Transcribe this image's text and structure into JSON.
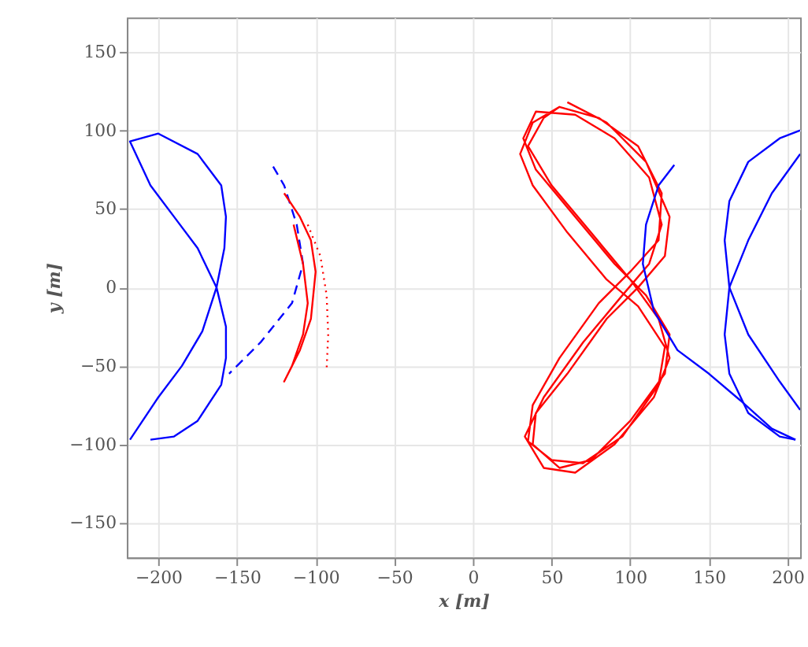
{
  "chart_data": {
    "type": "line",
    "xlabel": "x [m]",
    "ylabel": "y [m]",
    "xlim": [
      -220,
      208
    ],
    "ylim": [
      -172,
      172
    ],
    "xticks": [
      -200,
      -150,
      -100,
      -50,
      0,
      50,
      100,
      150,
      200
    ],
    "yticks": [
      -150,
      -100,
      -50,
      0,
      50,
      100,
      150
    ],
    "grid": true,
    "marker": "none",
    "series": [
      {
        "color": "#0000ff",
        "line_style": "solid",
        "x": [
          -218,
          -200,
          -185,
          -172,
          -163,
          -158,
          -157,
          -160,
          -175,
          -200,
          -218,
          -205,
          -190,
          -175,
          -163,
          -157,
          -157,
          -160,
          -175,
          -190,
          -205
        ],
        "values": [
          -97,
          -70,
          -50,
          -28,
          0,
          25,
          45,
          65,
          85,
          98,
          93,
          65,
          45,
          25,
          0,
          -25,
          -45,
          -62,
          -85,
          -95,
          -97
        ]
      },
      {
        "color": "#0000ff",
        "line_style": "dashed",
        "x": [
          -127,
          -120,
          -112,
          -108,
          -115,
          -135,
          -155
        ],
        "values": [
          77,
          65,
          40,
          15,
          -10,
          -35,
          -55
        ]
      },
      {
        "color": "#ff0000",
        "line_style": "solid",
        "x": [
          -120,
          -110,
          -103,
          -100,
          -103,
          -110,
          -120,
          -115,
          -108,
          -105,
          -108,
          -114
        ],
        "values": [
          60,
          45,
          30,
          10,
          -20,
          -40,
          -60,
          -50,
          -30,
          -10,
          15,
          40
        ]
      },
      {
        "color": "#ff0000",
        "line_style": "dotted",
        "x": [
          -105,
          -97,
          -93,
          -92,
          -93
        ],
        "values": [
          40,
          20,
          -5,
          -30,
          -52
        ]
      },
      {
        "color": "#ff0000",
        "line_style": "solid",
        "x": [
          60,
          85,
          110,
          125,
          122,
          105,
          85,
          60,
          40,
          38,
          55,
          75,
          100,
          122,
          125,
          110,
          90,
          65,
          40,
          32,
          40,
          65,
          90,
          112,
          120,
          112,
          95,
          70,
          45,
          33,
          45,
          65,
          90,
          115,
          125,
          118,
          100,
          75,
          50,
          35,
          45,
          55,
          80,
          105,
          120,
          118,
          100,
          80,
          55,
          38,
          35,
          50,
          70,
          95,
          118,
          122,
          105,
          85,
          60,
          38,
          30,
          38,
          55
        ],
        "values": [
          118,
          105,
          80,
          45,
          20,
          0,
          -20,
          -55,
          -80,
          -100,
          -115,
          -110,
          -85,
          -55,
          -30,
          -5,
          15,
          45,
          75,
          95,
          112,
          110,
          95,
          70,
          40,
          15,
          -5,
          -35,
          -70,
          -95,
          -115,
          -118,
          -100,
          -70,
          -45,
          -20,
          5,
          35,
          65,
          90,
          108,
          115,
          108,
          90,
          60,
          30,
          10,
          -10,
          -45,
          -75,
          -98,
          -110,
          -112,
          -95,
          -62,
          -38,
          -12,
          5,
          35,
          65,
          85,
          105,
          115
        ]
      },
      {
        "color": "#0000ff",
        "line_style": "solid",
        "x": [
          128,
          118,
          110,
          108,
          115,
          130,
          150,
          170,
          190,
          205
        ],
        "values": [
          78,
          65,
          40,
          15,
          -15,
          -40,
          -55,
          -72,
          -90,
          -97
        ]
      },
      {
        "color": "#0000ff",
        "line_style": "solid",
        "x": [
          208,
          195,
          175,
          163,
          160,
          163,
          175,
          195,
          208
        ],
        "values": [
          100,
          95,
          80,
          55,
          30,
          0,
          -30,
          -60,
          -78
        ]
      },
      {
        "color": "#0000ff",
        "line_style": "solid",
        "x": [
          208,
          190,
          175,
          163,
          160,
          163,
          175,
          195,
          205
        ],
        "values": [
          85,
          60,
          30,
          0,
          -30,
          -55,
          -80,
          -95,
          -97
        ]
      }
    ]
  }
}
